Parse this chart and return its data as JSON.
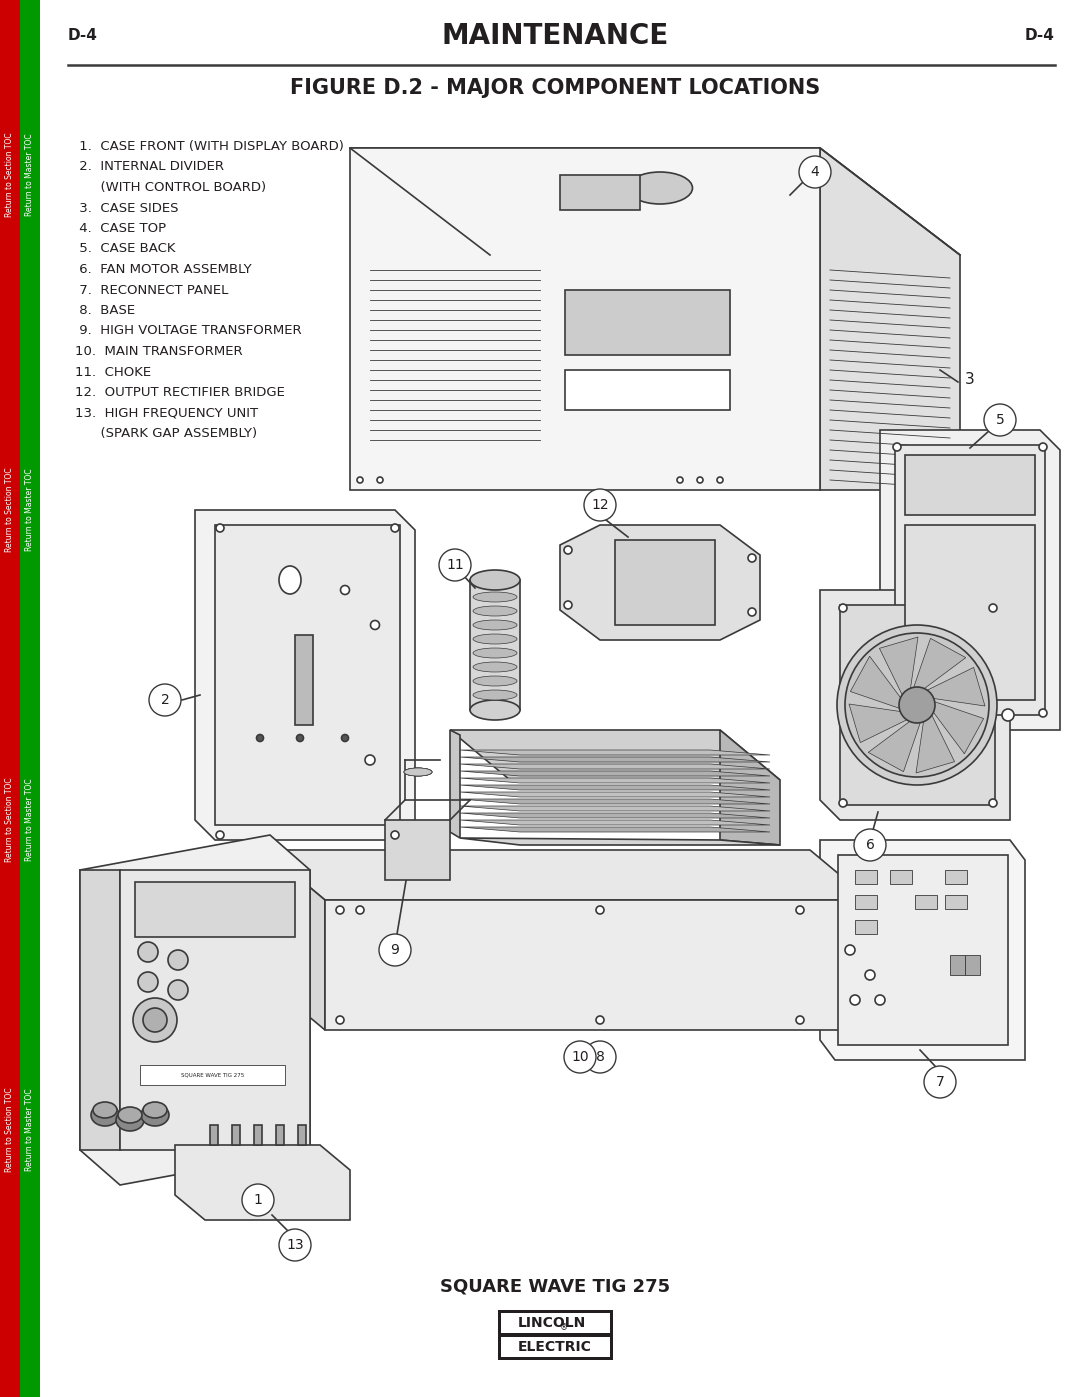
{
  "page_label": "D-4",
  "section_title": "MAINTENANCE",
  "figure_title": "FIGURE D.2 - MAJOR COMPONENT LOCATIONS",
  "component_list_left": [
    " 1.  CASE FRONT (WITH DISPLAY BOARD)",
    " 2.  INTERNAL DIVIDER",
    "      (WITH CONTROL BOARD)",
    " 3.  CASE SIDES",
    " 4.  CASE TOP",
    " 5.  CASE BACK",
    " 6.  FAN MOTOR ASSEMBLY",
    " 7.  RECONNECT PANEL",
    " 8.  BASE",
    " 9.  HIGH VOLTAGE TRANSFORMER",
    "10.  MAIN TRANSFORMER",
    "11.  CHOKE",
    "12.  OUTPUT RECTIFIER BRIDGE",
    "13.  HIGH FREQUENCY UNIT",
    "      (SPARK GAP ASSEMBLY)"
  ],
  "bottom_label": "SQUARE WAVE TIG 275",
  "bg_color": "#ffffff",
  "text_color": "#231f20",
  "line_color": "#3a3a3a",
  "sidebar_red": "#cc0000",
  "sidebar_green": "#009900"
}
